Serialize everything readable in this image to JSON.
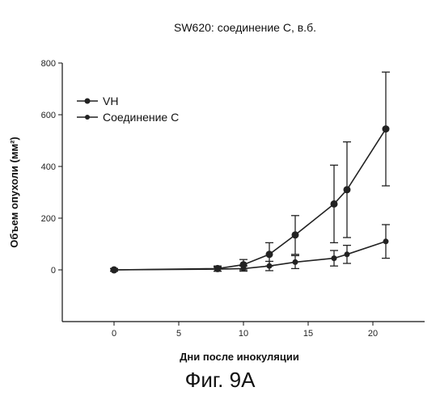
{
  "chart_data": {
    "type": "line",
    "title": "SW620: соединение C, в.б.",
    "xlabel": "Дни после инокуляции",
    "ylabel": "Объем опухоли (мм²)",
    "xlim": [
      -4,
      24
    ],
    "ylim": [
      -200,
      800
    ],
    "xticks": [
      0,
      5,
      10,
      15,
      20
    ],
    "xtick_labels": [
      "0",
      "5",
      "10",
      "15",
      "20"
    ],
    "yticks": [
      0,
      200,
      400,
      600,
      800
    ],
    "ytick_labels": [
      "0",
      "200",
      "400",
      "600",
      "800"
    ],
    "grid": false,
    "legend_position": "top-left",
    "series": [
      {
        "name": "VH",
        "x": [
          0,
          8,
          10,
          12,
          14,
          17,
          18,
          21
        ],
        "y": [
          0,
          5,
          20,
          60,
          135,
          255,
          310,
          545
        ],
        "err": [
          5,
          10,
          20,
          45,
          75,
          150,
          185,
          220
        ],
        "color": "#222222"
      },
      {
        "name": "Соединение C",
        "x": [
          0,
          8,
          10,
          12,
          14,
          17,
          18,
          21
        ],
        "y": [
          0,
          3,
          5,
          15,
          30,
          45,
          60,
          110
        ],
        "err": [
          5,
          8,
          10,
          18,
          25,
          30,
          35,
          65
        ],
        "color": "#222222"
      }
    ]
  },
  "caption": "Фиг. 9A"
}
